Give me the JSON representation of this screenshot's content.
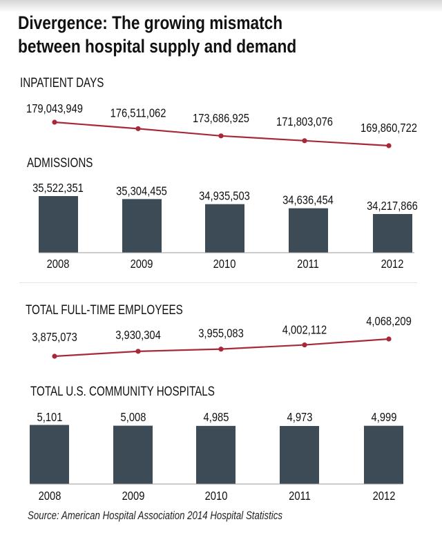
{
  "title_line1": "Divergence: The growing mismatch",
  "title_line2": "between hospital supply and demand",
  "source": "Source: American Hospital Association 2014 Hospital Statistics",
  "colors": {
    "line": "#a8283a",
    "bar": "#3c4b55",
    "axis": "#999999"
  },
  "chart_data": [
    {
      "type": "line",
      "title": "INPATIENT DAYS",
      "categories": [
        "2008",
        "2009",
        "2010",
        "2011",
        "2012"
      ],
      "values": [
        179043949,
        176511062,
        173686925,
        171803076,
        169860722
      ],
      "labels": [
        "179,043,949",
        "176,511,062",
        "173,686,925",
        "171,803,076",
        "169,860,722"
      ]
    },
    {
      "type": "bar",
      "title": "ADMISSIONS",
      "categories": [
        "2008",
        "2009",
        "2010",
        "2011",
        "2012"
      ],
      "values": [
        35522351,
        35304455,
        34935503,
        34636454,
        34217866
      ],
      "labels": [
        "35,522,351",
        "35,304,455",
        "34,935,503",
        "34,636,454",
        "34,217,866"
      ]
    },
    {
      "type": "line",
      "title": "TOTAL FULL-TIME EMPLOYEES",
      "categories": [
        "2008",
        "2009",
        "2010",
        "2011",
        "2012"
      ],
      "values": [
        3875073,
        3930304,
        3955083,
        4002112,
        4068209
      ],
      "labels": [
        "3,875,073",
        "3,930,304",
        "3,955,083",
        "4,002,112",
        "4,068,209"
      ]
    },
    {
      "type": "bar",
      "title": "TOTAL U.S. COMMUNITY HOSPITALS",
      "categories": [
        "2008",
        "2009",
        "2010",
        "2011",
        "2012"
      ],
      "values": [
        5101,
        5008,
        4985,
        4973,
        4999
      ],
      "labels": [
        "5,101",
        "5,008",
        "4,985",
        "4,973",
        "4,999"
      ]
    }
  ]
}
